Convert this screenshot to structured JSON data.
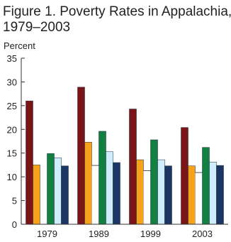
{
  "chart_data": {
    "type": "bar",
    "title": "Figure 1. Poverty Rates in Appalachia,",
    "subtitle": "1979–2003",
    "y_label": "Percent",
    "categories": [
      "1979",
      "1989",
      "1999",
      "2003"
    ],
    "series": [
      {
        "color": "#7b1416",
        "values": [
          26.0,
          28.9,
          24.3,
          20.4
        ]
      },
      {
        "color": "#f7a21b",
        "values": [
          12.5,
          17.3,
          13.6,
          12.3
        ]
      },
      {
        "color": "#ffffff",
        "values": [
          null,
          12.4,
          11.3,
          10.9
        ]
      },
      {
        "color": "#128040",
        "values": [
          14.9,
          19.6,
          17.8,
          16.2
        ]
      },
      {
        "color": "#cdeefa",
        "values": [
          14.0,
          15.3,
          13.6,
          13.1
        ]
      },
      {
        "color": "#1c3664",
        "values": [
          12.3,
          13.0,
          12.3,
          12.4
        ]
      }
    ],
    "ylim": [
      0,
      35
    ],
    "yticks": [
      0,
      5,
      10,
      15,
      20,
      25,
      30,
      35
    ]
  }
}
